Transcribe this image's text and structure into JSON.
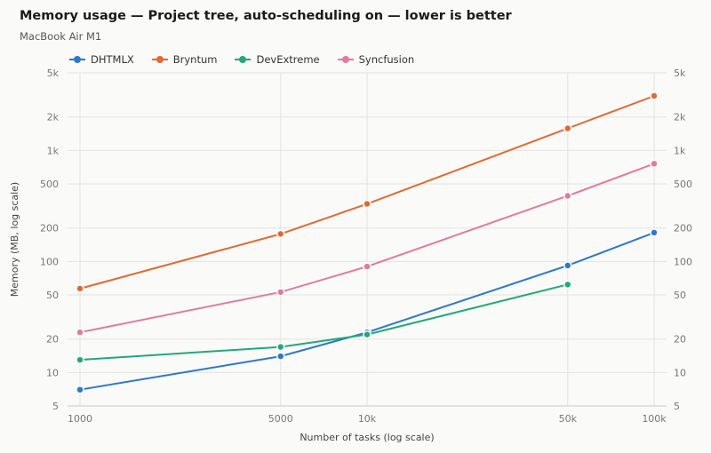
{
  "chart_data": {
    "type": "line",
    "title": "Memory usage — Project tree, auto-scheduling on — lower is better",
    "subtitle": "MacBook Air M1",
    "xlabel": "Number of tasks (log scale)",
    "ylabel": "Memory (MB, log scale)",
    "x_scale": "log",
    "y_scale": "log",
    "xlim": [
      1000,
      100000
    ],
    "ylim": [
      5,
      5000
    ],
    "x_ticks": [
      {
        "value": 1000,
        "label": "1000"
      },
      {
        "value": 5000,
        "label": "5000"
      },
      {
        "value": 10000,
        "label": "10k"
      },
      {
        "value": 50000,
        "label": "50k"
      },
      {
        "value": 100000,
        "label": "100k"
      }
    ],
    "y_ticks": [
      {
        "value": 5,
        "label": "5"
      },
      {
        "value": 10,
        "label": "10"
      },
      {
        "value": 20,
        "label": "20"
      },
      {
        "value": 50,
        "label": "50"
      },
      {
        "value": 100,
        "label": "100"
      },
      {
        "value": 200,
        "label": "200"
      },
      {
        "value": 500,
        "label": "500"
      },
      {
        "value": 1000,
        "label": "1k"
      },
      {
        "value": 2000,
        "label": "2k"
      },
      {
        "value": 5000,
        "label": "5k"
      }
    ],
    "grid": true,
    "legend_position": "top-left",
    "series": [
      {
        "name": "DHTMLX",
        "color": "#2e78c9",
        "points": [
          [
            1000,
            7
          ],
          [
            5000,
            14
          ],
          [
            10000,
            23
          ],
          [
            50000,
            92
          ],
          [
            100000,
            182
          ]
        ]
      },
      {
        "name": "Bryntum",
        "color": "#e06a32",
        "points": [
          [
            1000,
            57
          ],
          [
            5000,
            177
          ],
          [
            10000,
            330
          ],
          [
            50000,
            1580
          ],
          [
            100000,
            3100
          ]
        ]
      },
      {
        "name": "DevExtreme",
        "color": "#21a97a",
        "points": [
          [
            1000,
            13
          ],
          [
            5000,
            17
          ],
          [
            10000,
            22
          ],
          [
            50000,
            62
          ]
        ]
      },
      {
        "name": "Syncfusion",
        "color": "#e07ba0",
        "points": [
          [
            1000,
            23
          ],
          [
            5000,
            53
          ],
          [
            10000,
            90
          ],
          [
            50000,
            390
          ],
          [
            100000,
            760
          ]
        ]
      }
    ]
  }
}
